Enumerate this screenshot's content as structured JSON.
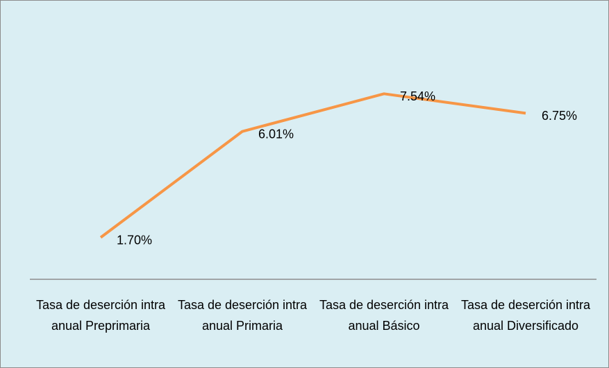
{
  "chart_data": {
    "type": "line",
    "categories": [
      "Tasa de deserción intra anual Preprimaria",
      "Tasa de deserción intra anual Primaria",
      "Tasa de deserción intra anual Básico",
      "Tasa de deserción intra anual Diversificado"
    ],
    "series": [
      {
        "name": "Tasa de deserción",
        "color": "#f79646",
        "values": [
          1.7,
          6.01,
          7.54,
          6.75
        ],
        "value_labels": [
          "1.70%",
          "6.01%",
          "7.54%",
          "6.75%"
        ]
      }
    ],
    "ylim": [
      0,
      10
    ]
  }
}
